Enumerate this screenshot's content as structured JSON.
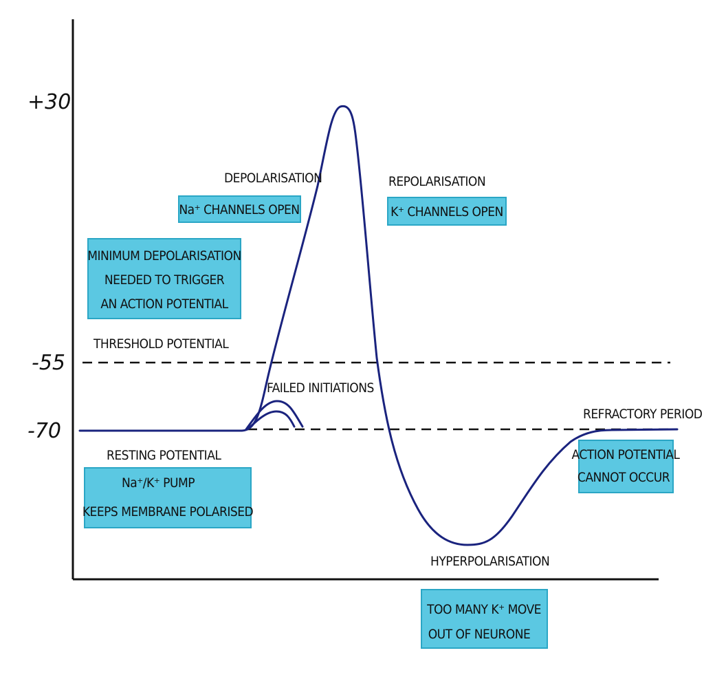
{
  "y_ticks": {
    "plus30": "+30",
    "minus55": "-55",
    "minus70": "-70"
  },
  "labels": {
    "depolarisation": "DEPOLARISATION",
    "repolarisation": "REPOLARISATION",
    "threshold_potential": "THRESHOLD POTENTIAL",
    "failed_initiations": "FAILED INITIATIONS",
    "refractory_period": "REFRACTORY PERIOD",
    "resting_potential": "RESTING POTENTIAL",
    "hyperpolarisation": "HYPERPOLARISATION"
  },
  "boxes": {
    "na_channels": {
      "line1": "Na⁺ CHANNELS OPEN"
    },
    "k_channels": {
      "line1": "K⁺ CHANNELS OPEN"
    },
    "minimum_depolarisation": {
      "line1": "MINIMUM DEPOLARISATION",
      "line2": "NEEDED TO TRIGGER",
      "line3": "AN ACTION POTENTIAL"
    },
    "resting_pump": {
      "line1": "Na⁺/K⁺ PUMP",
      "line2": "KEEPS MEMBRANE POLARISED"
    },
    "refractory_note": {
      "line1": "ACTION POTENTIAL",
      "line2": "CANNOT OCCUR"
    },
    "hyperpolarisation_note": {
      "line1": "TOO MANY K⁺ MOVE",
      "line2": "OUT OF NEURONE"
    }
  },
  "colors": {
    "box_fill": "#5bc8e2",
    "box_border": "#2aa6c5",
    "curve": "#1a237e",
    "axis": "#111111"
  }
}
